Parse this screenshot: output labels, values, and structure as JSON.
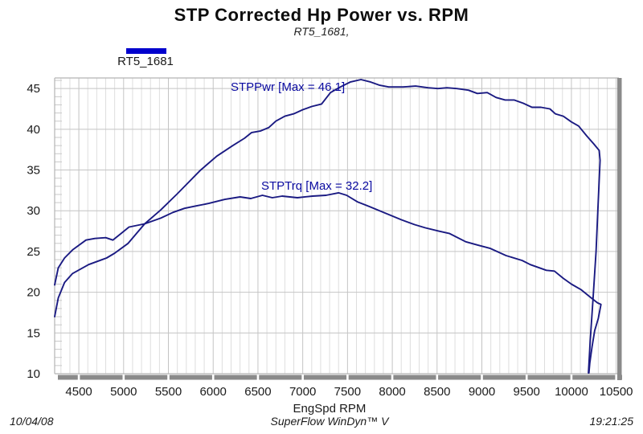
{
  "header": {
    "title": "STP Corrected Hp Power vs. RPM",
    "subtitle": "RT5_1681,"
  },
  "legend": {
    "label": "RT5_1681",
    "swatch_color": "#0000cd"
  },
  "footer": {
    "date": "10/04/08",
    "app": "SuperFlow WinDyn™ V",
    "time": "19:21:25"
  },
  "chart_data": {
    "type": "line",
    "title": "STP Corrected Hp Power vs. RPM",
    "subtitle": "RT5_1681,",
    "xlabel": "EngSpd  RPM",
    "ylabel": "",
    "xlim": [
      4230,
      10530
    ],
    "ylim": [
      10,
      46.3
    ],
    "x_ticks": [
      4500,
      5000,
      5500,
      6000,
      6500,
      7000,
      7500,
      8000,
      8500,
      9000,
      9500,
      10000,
      10500
    ],
    "y_ticks": [
      10,
      15,
      20,
      25,
      30,
      35,
      40,
      45
    ],
    "x_minor_step": 100,
    "y_minor_step": 1,
    "grid": true,
    "legend_position": "top-left",
    "curve_color": "#1a1a82",
    "label_color": "#0a0aa0",
    "series": [
      {
        "name": "STPPwr",
        "max": 46.1,
        "annotation": "STPPwr [Max = 46.1]",
        "points": [
          [
            4230,
            17.0
          ],
          [
            4270,
            19.3
          ],
          [
            4340,
            21.2
          ],
          [
            4430,
            22.3
          ],
          [
            4610,
            23.4
          ],
          [
            4810,
            24.2
          ],
          [
            4900,
            24.8
          ],
          [
            5050,
            26.0
          ],
          [
            5235,
            28.4
          ],
          [
            5415,
            30.1
          ],
          [
            5600,
            32.1
          ],
          [
            5860,
            35.0
          ],
          [
            6040,
            36.7
          ],
          [
            6220,
            38.0
          ],
          [
            6350,
            38.9
          ],
          [
            6430,
            39.6
          ],
          [
            6530,
            39.8
          ],
          [
            6620,
            40.2
          ],
          [
            6700,
            41.0
          ],
          [
            6800,
            41.6
          ],
          [
            6900,
            41.9
          ],
          [
            7000,
            42.4
          ],
          [
            7100,
            42.8
          ],
          [
            7210,
            43.1
          ],
          [
            7310,
            44.5
          ],
          [
            7420,
            45.2
          ],
          [
            7530,
            45.8
          ],
          [
            7650,
            46.1
          ],
          [
            7760,
            45.8
          ],
          [
            7860,
            45.4
          ],
          [
            7960,
            45.2
          ],
          [
            8120,
            45.2
          ],
          [
            8260,
            45.3
          ],
          [
            8400,
            45.1
          ],
          [
            8510,
            45.0
          ],
          [
            8610,
            45.1
          ],
          [
            8720,
            45.0
          ],
          [
            8850,
            44.8
          ],
          [
            8950,
            44.4
          ],
          [
            9060,
            44.5
          ],
          [
            9160,
            43.9
          ],
          [
            9260,
            43.6
          ],
          [
            9360,
            43.6
          ],
          [
            9460,
            43.2
          ],
          [
            9560,
            42.7
          ],
          [
            9660,
            42.7
          ],
          [
            9760,
            42.5
          ],
          [
            9820,
            41.9
          ],
          [
            9910,
            41.6
          ],
          [
            10000,
            40.9
          ],
          [
            10080,
            40.4
          ],
          [
            10170,
            39.2
          ],
          [
            10250,
            38.2
          ],
          [
            10310,
            37.4
          ],
          [
            10320,
            36.2
          ],
          [
            10295,
            30.0
          ],
          [
            10275,
            25.0
          ],
          [
            10240,
            19.0
          ],
          [
            10210,
            14.0
          ],
          [
            10190,
            10.1
          ]
        ]
      },
      {
        "name": "STPTrq",
        "max": 32.2,
        "annotation": "STPTrq [Max = 32.2]",
        "points": [
          [
            4230,
            20.9
          ],
          [
            4270,
            23.0
          ],
          [
            4340,
            24.2
          ],
          [
            4430,
            25.2
          ],
          [
            4580,
            26.4
          ],
          [
            4680,
            26.6
          ],
          [
            4800,
            26.7
          ],
          [
            4880,
            26.4
          ],
          [
            4970,
            27.2
          ],
          [
            5060,
            28.0
          ],
          [
            5235,
            28.4
          ],
          [
            5415,
            29.1
          ],
          [
            5550,
            29.8
          ],
          [
            5680,
            30.3
          ],
          [
            5810,
            30.6
          ],
          [
            5950,
            30.9
          ],
          [
            6130,
            31.4
          ],
          [
            6300,
            31.7
          ],
          [
            6420,
            31.5
          ],
          [
            6550,
            31.9
          ],
          [
            6660,
            31.6
          ],
          [
            6770,
            31.8
          ],
          [
            6940,
            31.6
          ],
          [
            7110,
            31.8
          ],
          [
            7260,
            31.9
          ],
          [
            7400,
            32.2
          ],
          [
            7490,
            31.9
          ],
          [
            7610,
            31.1
          ],
          [
            7750,
            30.5
          ],
          [
            7880,
            29.9
          ],
          [
            8100,
            28.9
          ],
          [
            8250,
            28.3
          ],
          [
            8370,
            27.9
          ],
          [
            8520,
            27.5
          ],
          [
            8640,
            27.2
          ],
          [
            8820,
            26.2
          ],
          [
            8950,
            25.8
          ],
          [
            9090,
            25.4
          ],
          [
            9270,
            24.5
          ],
          [
            9450,
            23.9
          ],
          [
            9540,
            23.4
          ],
          [
            9720,
            22.7
          ],
          [
            9810,
            22.6
          ],
          [
            9910,
            21.7
          ],
          [
            10000,
            21.0
          ],
          [
            10110,
            20.3
          ],
          [
            10200,
            19.5
          ],
          [
            10290,
            18.7
          ],
          [
            10330,
            18.5
          ],
          [
            10300,
            16.8
          ],
          [
            10260,
            15.3
          ],
          [
            10230,
            13.3
          ],
          [
            10205,
            11.3
          ],
          [
            10195,
            10.1
          ]
        ]
      }
    ]
  }
}
